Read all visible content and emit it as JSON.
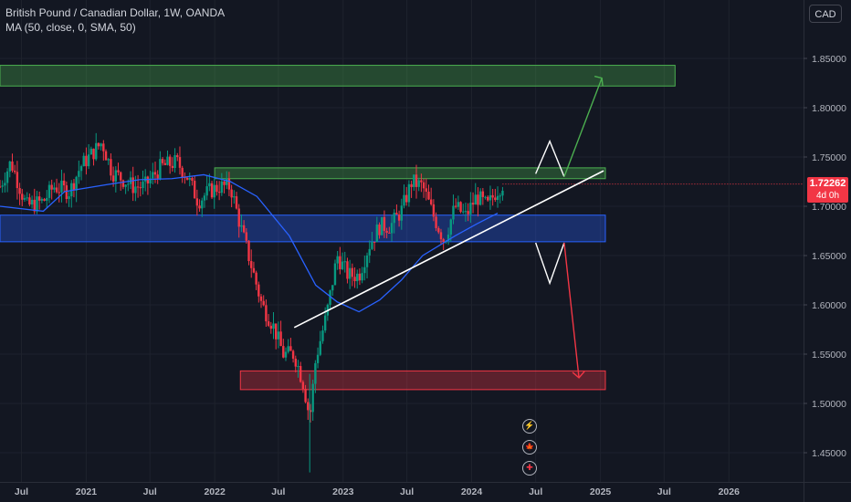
{
  "header": {
    "symbol_line": "British Pound / Canadian Dollar, 1W, OANDA",
    "indicator_line": "MA (50, close, 0, SMA, 50)"
  },
  "currency_button": "CAD",
  "last_price": {
    "value": "1.72262",
    "countdown": "4d 0h",
    "color": "#f23645"
  },
  "colors": {
    "bull": "#089981",
    "bear": "#f23645",
    "ma": "#2962ff",
    "trendline": "#ffffff",
    "resistance_zone": "#4caf50",
    "support_zone": "#2962ff",
    "target_zone": "#f23645"
  },
  "events": [
    {
      "icon": "lightning-icon",
      "glyph": "⚡"
    },
    {
      "icon": "canada-flag-icon",
      "glyph": "🍁"
    },
    {
      "icon": "uk-flag-icon",
      "glyph": "✚"
    }
  ],
  "chart_data": {
    "type": "candlestick",
    "title": "British Pound / Canadian Dollar, 1W, OANDA",
    "y_ticks": [
      "1.85000",
      "1.80000",
      "1.75000",
      "1.70000",
      "1.65000",
      "1.60000",
      "1.55000",
      "1.50000",
      "1.45000"
    ],
    "ylim": [
      1.43,
      1.89
    ],
    "x_ticks": [
      "Jul",
      "2021",
      "Jul",
      "2022",
      "Jul",
      "2023",
      "Jul",
      "2024",
      "Jul",
      "2025",
      "Jul",
      "2026"
    ],
    "xlim": [
      "2020-05-01",
      "2026-08-01"
    ],
    "price_path": [
      [
        "2020-05-01",
        1.72
      ],
      [
        "2020-06-01",
        1.745
      ],
      [
        "2020-07-15",
        1.7
      ],
      [
        "2020-09-01",
        1.705
      ],
      [
        "2020-10-01",
        1.72
      ],
      [
        "2020-11-15",
        1.715
      ],
      [
        "2020-12-15",
        1.74
      ],
      [
        "2021-02-15",
        1.765
      ],
      [
        "2021-03-15",
        1.735
      ],
      [
        "2021-05-15",
        1.72
      ],
      [
        "2021-06-15",
        1.72
      ],
      [
        "2021-08-01",
        1.74
      ],
      [
        "2021-09-15",
        1.745
      ],
      [
        "2021-10-15",
        1.73
      ],
      [
        "2021-11-15",
        1.705
      ],
      [
        "2021-12-15",
        1.715
      ],
      [
        "2022-01-15",
        1.72
      ],
      [
        "2022-02-15",
        1.72
      ],
      [
        "2022-03-15",
        1.68
      ],
      [
        "2022-04-15",
        1.64
      ],
      [
        "2022-05-15",
        1.6
      ],
      [
        "2022-06-15",
        1.58
      ],
      [
        "2022-07-15",
        1.55
      ],
      [
        "2022-08-15",
        1.55
      ],
      [
        "2022-09-10",
        1.52
      ],
      [
        "2022-09-28",
        1.485
      ],
      [
        "2022-10-15",
        1.545
      ],
      [
        "2022-11-15",
        1.59
      ],
      [
        "2022-12-15",
        1.65
      ],
      [
        "2023-01-15",
        1.63
      ],
      [
        "2023-02-15",
        1.63
      ],
      [
        "2023-03-15",
        1.66
      ],
      [
        "2023-04-15",
        1.68
      ],
      [
        "2023-05-15",
        1.68
      ],
      [
        "2023-06-15",
        1.695
      ],
      [
        "2023-07-15",
        1.725
      ],
      [
        "2023-08-15",
        1.72
      ],
      [
        "2023-09-15",
        1.69
      ],
      [
        "2023-10-15",
        1.665
      ],
      [
        "2023-11-15",
        1.7
      ],
      [
        "2023-12-15",
        1.69
      ],
      [
        "2024-01-15",
        1.71
      ],
      [
        "2024-02-15",
        1.7
      ],
      [
        "2024-03-10",
        1.715
      ],
      [
        "2024-03-29",
        1.72262
      ]
    ],
    "moving_average_path": [
      [
        "2020-05-01",
        1.7
      ],
      [
        "2020-09-01",
        1.695
      ],
      [
        "2020-11-01",
        1.715
      ],
      [
        "2021-03-01",
        1.722
      ],
      [
        "2021-06-01",
        1.727
      ],
      [
        "2021-09-01",
        1.728
      ],
      [
        "2021-12-01",
        1.732
      ],
      [
        "2022-02-15",
        1.725
      ],
      [
        "2022-05-01",
        1.71
      ],
      [
        "2022-08-01",
        1.67
      ],
      [
        "2022-10-15",
        1.62
      ],
      [
        "2022-12-15",
        1.603
      ],
      [
        "2023-02-15",
        1.593
      ],
      [
        "2023-04-15",
        1.605
      ],
      [
        "2023-06-15",
        1.625
      ],
      [
        "2023-08-15",
        1.65
      ],
      [
        "2023-11-15",
        1.67
      ],
      [
        "2024-01-15",
        1.682
      ],
      [
        "2024-03-15",
        1.693
      ]
    ],
    "zones": [
      {
        "name": "upper-target-zone",
        "from": "2020-05-01",
        "to": "2025-08-01",
        "y_low": 1.822,
        "y_high": 1.843,
        "color": "#4caf50"
      },
      {
        "name": "resistance-zone",
        "from": "2022-01-01",
        "to": "2025-01-15",
        "y_low": 1.728,
        "y_high": 1.739,
        "color": "#4caf50"
      },
      {
        "name": "support-zone",
        "from": "2020-05-01",
        "to": "2025-01-15",
        "y_low": 1.664,
        "y_high": 1.691,
        "color": "#2962ff"
      },
      {
        "name": "downside-target-zone",
        "from": "2022-03-15",
        "to": "2025-01-15",
        "y_low": 1.514,
        "y_high": 1.533,
        "color": "#f23645"
      }
    ],
    "trendline": {
      "from": [
        "2022-08-15",
        1.577
      ],
      "to": [
        "2025-01-10",
        1.736
      ]
    },
    "scenario_up": [
      [
        "2024-07-01",
        1.733
      ],
      [
        "2024-08-10",
        1.766
      ],
      [
        "2024-09-20",
        1.73
      ],
      [
        "2025-01-05",
        1.83
      ]
    ],
    "scenario_down": [
      [
        "2024-07-01",
        1.663
      ],
      [
        "2024-08-10",
        1.622
      ],
      [
        "2024-09-20",
        1.663
      ],
      [
        "2024-11-01",
        1.526
      ]
    ],
    "grid": true
  }
}
